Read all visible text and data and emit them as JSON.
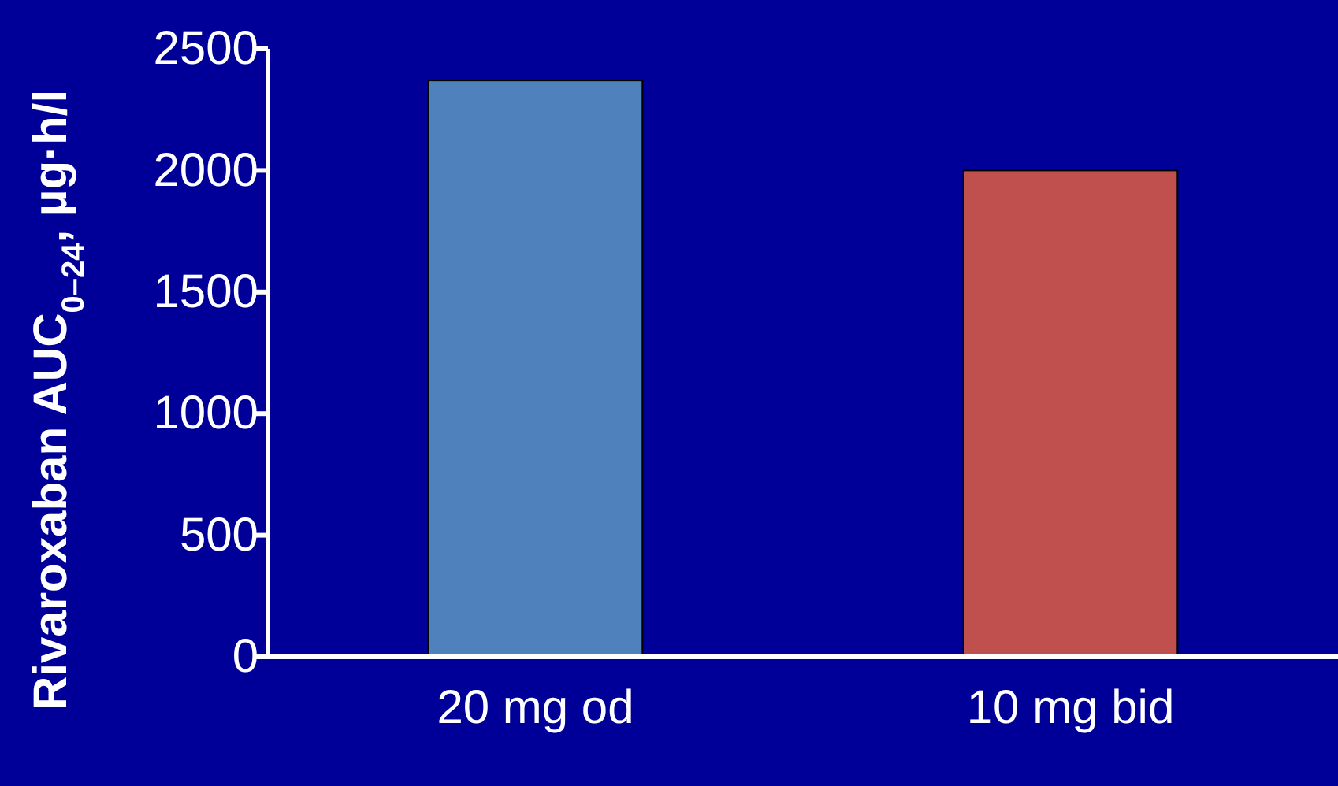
{
  "chart_data": {
    "type": "bar",
    "ylabel": "Rivaroxaban AUC$_{0–24}$, µg·h/l",
    "categories": [
      "20 mg od",
      "10 mg bid"
    ],
    "values": [
      2370,
      2000
    ],
    "colors": [
      "#4f81bd",
      "#c0504d"
    ],
    "ylim": [
      0,
      2500
    ],
    "yticks": [
      0,
      500,
      1000,
      1500,
      2000,
      2500
    ],
    "grid": false
  }
}
